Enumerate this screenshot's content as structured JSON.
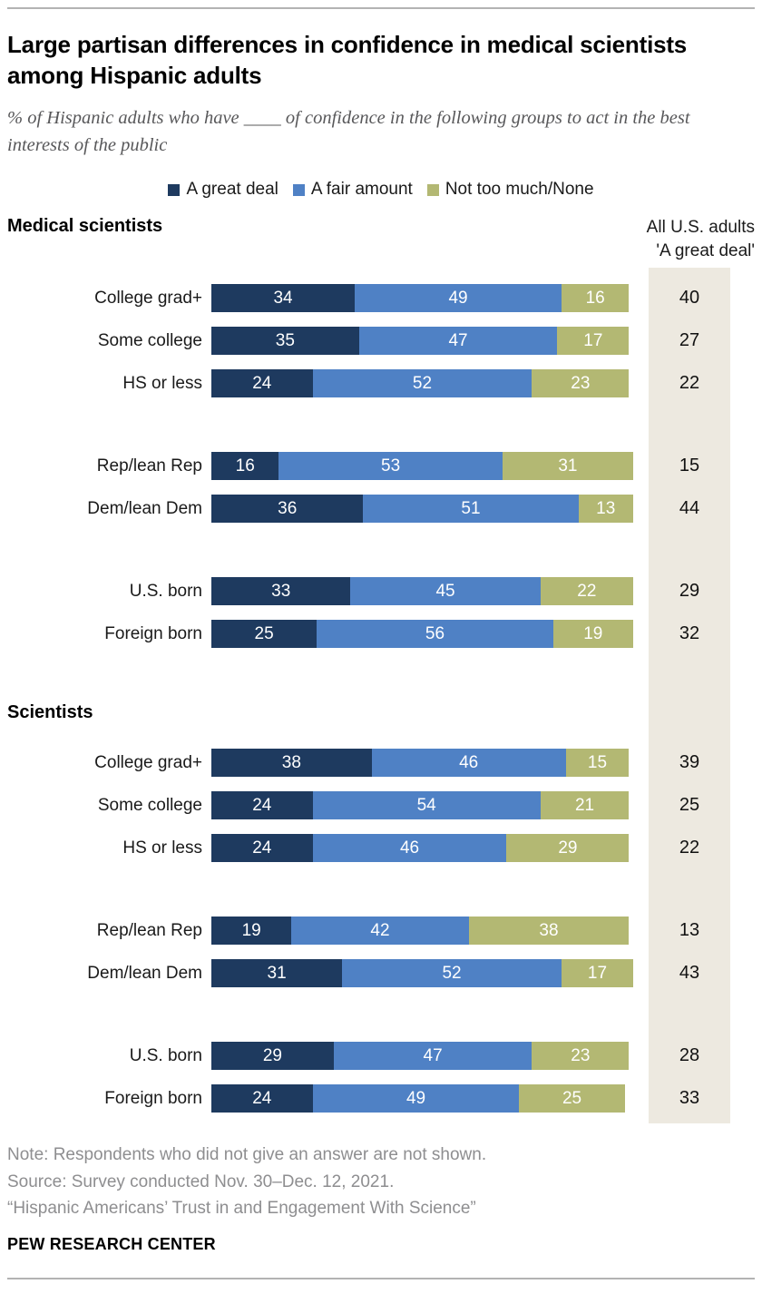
{
  "page": {
    "title": "Large partisan differences in confidence in medical scientists among Hispanic adults",
    "subtitle": "% of Hispanic adults who have ____ of confidence in the following groups to act in the best interests of the public"
  },
  "legend": {
    "items": [
      {
        "label": "A great deal",
        "color": "#1E3A5F"
      },
      {
        "label": "A fair amount",
        "color": "#4F81C5"
      },
      {
        "label": "Not too much/None",
        "color": "#B3B873"
      }
    ]
  },
  "right_column": {
    "header_line1": "All U.S. adults",
    "header_line2": "'A great deal'",
    "strip_color": "#EDE9E0"
  },
  "chart_data": {
    "type": "bar",
    "stacked": true,
    "orientation": "horizontal",
    "unit": "%",
    "xlim": [
      0,
      100
    ],
    "series_names": [
      "A great deal",
      "A fair amount",
      "Not too much/None"
    ],
    "series_colors": [
      "#1E3A5F",
      "#4F81C5",
      "#B3B873"
    ],
    "right_column_label": "All U.S. adults 'A great deal'",
    "sections": [
      {
        "title": "Medical scientists",
        "groups": [
          {
            "rows": [
              {
                "label": "College grad+",
                "values": [
                  34,
                  49,
                  16
                ],
                "all_us_adults_great_deal": 40
              },
              {
                "label": "Some college",
                "values": [
                  35,
                  47,
                  17
                ],
                "all_us_adults_great_deal": 27
              },
              {
                "label": "HS or less",
                "values": [
                  24,
                  52,
                  23
                ],
                "all_us_adults_great_deal": 22
              }
            ]
          },
          {
            "rows": [
              {
                "label": "Rep/lean Rep",
                "values": [
                  16,
                  53,
                  31
                ],
                "all_us_adults_great_deal": 15
              },
              {
                "label": "Dem/lean Dem",
                "values": [
                  36,
                  51,
                  13
                ],
                "all_us_adults_great_deal": 44
              }
            ]
          },
          {
            "rows": [
              {
                "label": "U.S. born",
                "values": [
                  33,
                  45,
                  22
                ],
                "all_us_adults_great_deal": 29
              },
              {
                "label": "Foreign born",
                "values": [
                  25,
                  56,
                  19
                ],
                "all_us_adults_great_deal": 32
              }
            ]
          }
        ]
      },
      {
        "title": "Scientists",
        "groups": [
          {
            "rows": [
              {
                "label": "College grad+",
                "values": [
                  38,
                  46,
                  15
                ],
                "all_us_adults_great_deal": 39
              },
              {
                "label": "Some college",
                "values": [
                  24,
                  54,
                  21
                ],
                "all_us_adults_great_deal": 25
              },
              {
                "label": "HS or less",
                "values": [
                  24,
                  46,
                  29
                ],
                "all_us_adults_great_deal": 22
              }
            ]
          },
          {
            "rows": [
              {
                "label": "Rep/lean Rep",
                "values": [
                  19,
                  42,
                  38
                ],
                "all_us_adults_great_deal": 13
              },
              {
                "label": "Dem/lean Dem",
                "values": [
                  31,
                  52,
                  17
                ],
                "all_us_adults_great_deal": 43
              }
            ]
          },
          {
            "rows": [
              {
                "label": "U.S. born",
                "values": [
                  29,
                  47,
                  23
                ],
                "all_us_adults_great_deal": 28
              },
              {
                "label": "Foreign born",
                "values": [
                  24,
                  49,
                  25
                ],
                "all_us_adults_great_deal": 33
              }
            ]
          }
        ]
      }
    ]
  },
  "footer": {
    "note": "Note: Respondents who did not give an answer are not shown.",
    "source": "Source: Survey conducted Nov. 30–Dec. 12, 2021.",
    "report": "“Hispanic Americans’ Trust in and Engagement With Science”",
    "brand": "PEW RESEARCH CENTER"
  }
}
